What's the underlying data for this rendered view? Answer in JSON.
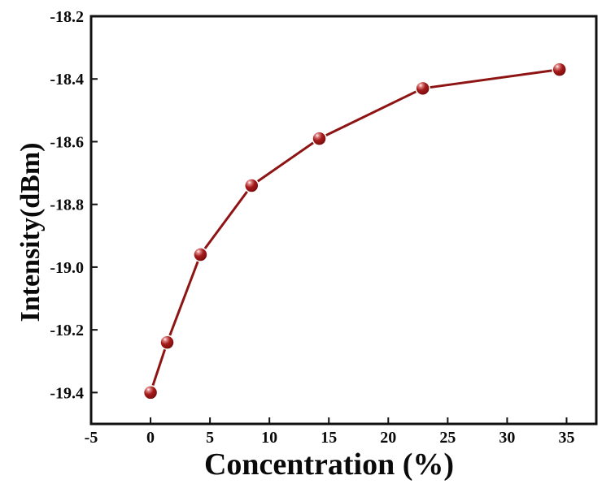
{
  "chart_data": {
    "type": "line",
    "title": "",
    "xlabel": "Concentration (%)",
    "ylabel": "Intensity(dBm)",
    "x": [
      0,
      1.4,
      4.2,
      8.5,
      14.2,
      22.9,
      34.4
    ],
    "y": [
      -19.4,
      -19.24,
      -18.96,
      -18.74,
      -18.59,
      -18.43,
      -18.37
    ],
    "xlim": [
      -5,
      37.5
    ],
    "ylim": [
      -19.5,
      -18.2
    ],
    "xticks": [
      -5,
      0,
      5,
      10,
      15,
      20,
      25,
      30,
      35
    ],
    "xtick_labels": [
      "-5",
      "0",
      "5",
      "10",
      "15",
      "20",
      "25",
      "30",
      "35"
    ],
    "yticks": [
      -18.2,
      -18.4,
      -18.6,
      -18.8,
      -19.0,
      -19.2,
      -19.4
    ],
    "ytick_labels": [
      "-18.2",
      "-18.4",
      "-18.6",
      "-18.8",
      "-19.0",
      "-19.2",
      "-19.4"
    ],
    "grid": false,
    "legend": null,
    "frame": "box",
    "tick_direction": "in",
    "axis_color": "#111111",
    "line_color": "#8e1414",
    "marker": {
      "shape": "sphere",
      "base_color": "#8b1010",
      "dark_color": "#5a0505",
      "highlight_color": "#ffffff",
      "outline_color": "#ffffff"
    }
  }
}
